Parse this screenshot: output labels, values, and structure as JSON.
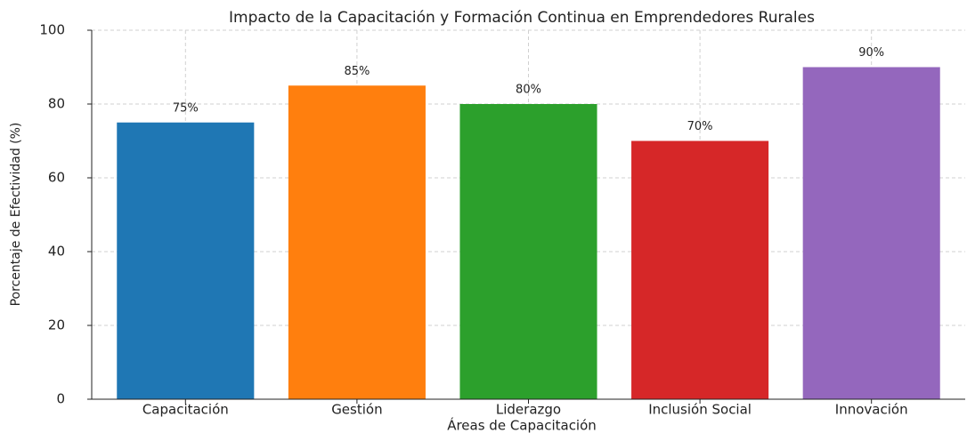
{
  "chart_data": {
    "type": "bar",
    "title": "Impacto de la Capacitación y Formación Continua en Emprendedores Rurales",
    "xlabel": "Áreas de Capacitación",
    "ylabel": "Porcentaje de Efectividad (%)",
    "categories": [
      "Capacitación",
      "Gestión",
      "Liderazgo",
      "Inclusión Social",
      "Innovación"
    ],
    "values": [
      75,
      85,
      80,
      70,
      90
    ],
    "value_labels": [
      "75%",
      "85%",
      "80%",
      "70%",
      "90%"
    ],
    "colors": [
      "#1f77b4",
      "#ff7f0e",
      "#2ca02c",
      "#d62728",
      "#9467bd"
    ],
    "ylim": [
      0,
      100
    ],
    "yticks": [
      0,
      20,
      40,
      60,
      80,
      100
    ],
    "grid": true
  }
}
